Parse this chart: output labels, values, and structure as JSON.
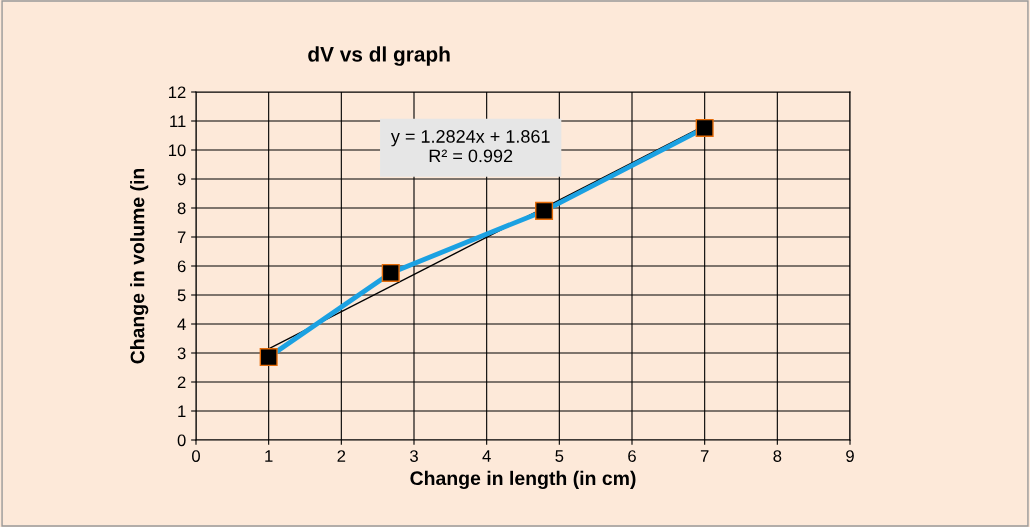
{
  "chart_data": {
    "type": "line",
    "title": "dV vs dl graph",
    "xlabel": "Change in length (in cm)",
    "ylabel": "Change in volume (in",
    "series": [
      {
        "color": "#1ba1e2",
        "x": [
          1,
          2.68,
          4.79,
          7
        ],
        "values": [
          2.86,
          5.76,
          7.9,
          10.76
        ],
        "marker": "square"
      },
      {
        "color": "#000000",
        "x": [
          1,
          7
        ],
        "values": [
          3.14,
          10.84
        ],
        "marker": "none"
      }
    ],
    "annotations": [
      "y = 1.2824x + 1.861\nR² = 0.992"
    ],
    "xlim": [
      0,
      9
    ],
    "xticks": [
      0,
      1,
      2,
      3,
      4,
      5,
      6,
      7,
      8,
      9
    ],
    "ylim": [
      0,
      12
    ],
    "yticks": [
      0,
      1,
      2,
      3,
      4,
      5,
      6,
      7,
      8,
      9,
      10,
      11,
      12
    ],
    "grid": true,
    "legend": false
  }
}
